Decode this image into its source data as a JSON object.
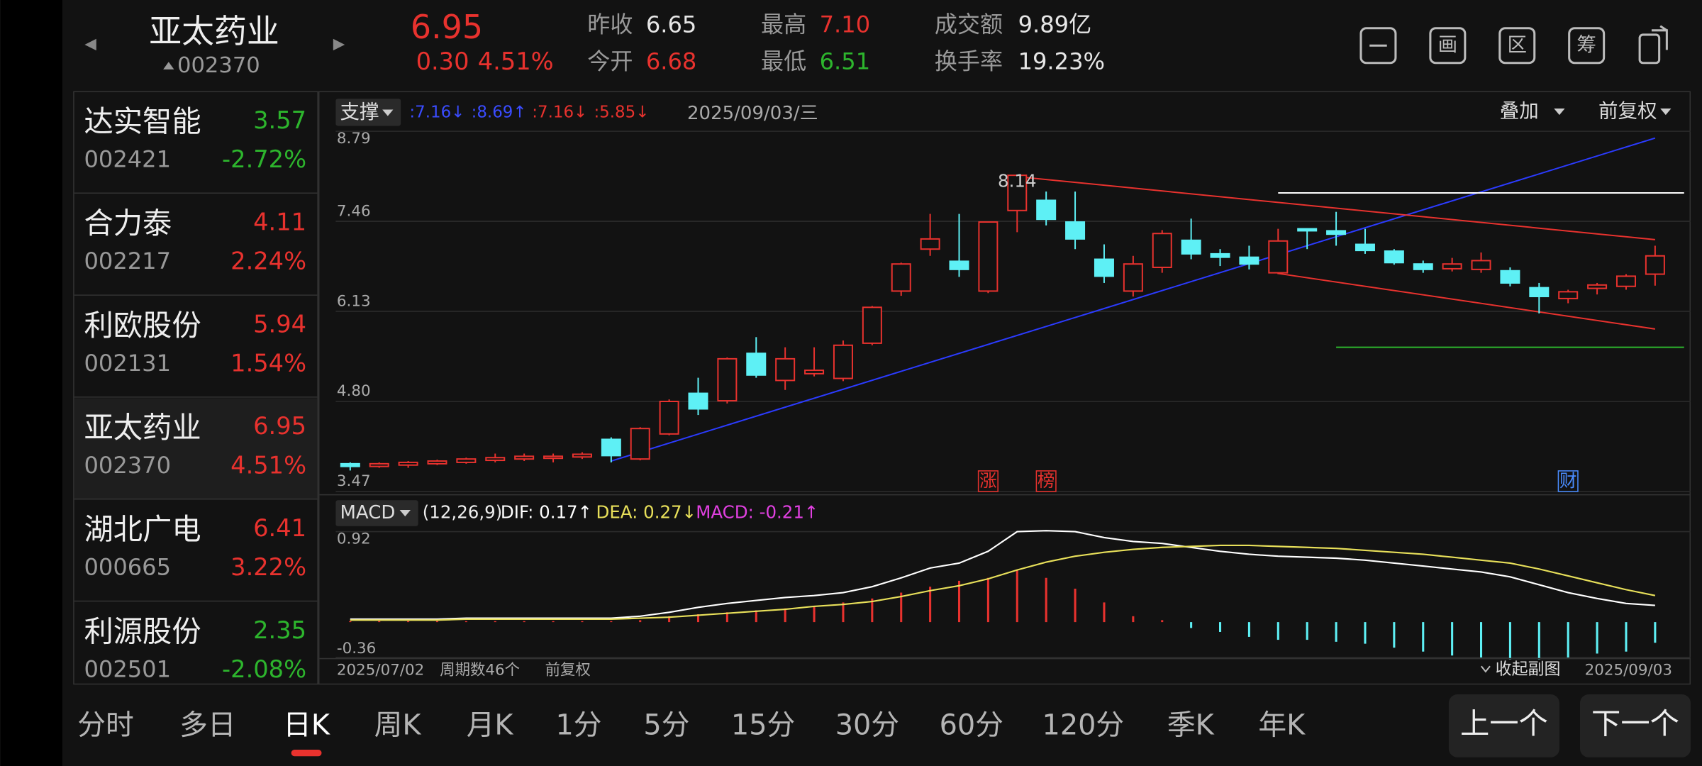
{
  "header": {
    "name": "亚太药业",
    "code": "002370",
    "price": "6.95",
    "change": "0.30",
    "change_pct": "4.51%",
    "color": "#e8322e",
    "stats": [
      {
        "label": "昨收",
        "value": "6.65",
        "color": "#e6e6e6"
      },
      {
        "label": "今开",
        "value": "6.68",
        "color": "#e8322e"
      },
      {
        "label": "最高",
        "value": "7.10",
        "color": "#e8322e"
      },
      {
        "label": "最低",
        "value": "6.51",
        "color": "#2db52d"
      },
      {
        "label": "成交额",
        "value": "9.89亿",
        "color": "#e6e6e6"
      },
      {
        "label": "换手率",
        "value": "19.23%",
        "color": "#e6e6e6"
      }
    ],
    "icons": [
      "画",
      "区",
      "筹"
    ]
  },
  "watchlist": {
    "selected": 3,
    "rows": [
      {
        "name": "达实智能",
        "code": "002421",
        "price": "3.57",
        "change": "-2.72%",
        "color": "#2db52d"
      },
      {
        "name": "合力泰",
        "code": "002217",
        "price": "4.11",
        "change": "2.24%",
        "color": "#e8322e"
      },
      {
        "name": "利欧股份",
        "code": "002131",
        "price": "5.94",
        "change": "1.54%",
        "color": "#e8322e"
      },
      {
        "name": "亚太药业",
        "code": "002370",
        "price": "6.95",
        "change": "4.51%",
        "color": "#e8322e"
      },
      {
        "name": "湖北广电",
        "code": "000665",
        "price": "6.41",
        "change": "3.22%",
        "color": "#e8322e"
      },
      {
        "name": "利源股份",
        "code": "002501",
        "price": "2.35",
        "change": "-2.08%",
        "color": "#2db52d"
      }
    ]
  },
  "chart_data": [
    {
      "type": "candlestick",
      "up_color": "#e8322e",
      "down_color": "#5ef0f5",
      "support_button": "支撑",
      "support_levels": [
        {
          "text": ":7.16↓",
          "color": "#3a4cff"
        },
        {
          "text": ":8.69↑",
          "color": "#3a4cff"
        },
        {
          "text": ":7.16↓",
          "color": "#e8322e"
        },
        {
          "text": ":5.85↓",
          "color": "#e8322e"
        }
      ],
      "date": "2025/09/03/三",
      "overlay": "叠加",
      "adjust": "前复权",
      "categories": [
        "2025/07/02",
        null,
        null,
        null,
        null,
        null,
        null,
        null,
        null,
        null,
        null,
        null,
        null,
        null,
        null,
        null,
        null,
        null,
        null,
        null,
        null,
        null,
        null,
        null,
        null,
        null,
        null,
        null,
        null,
        null,
        null,
        null,
        null,
        null,
        null,
        null,
        null,
        null,
        null,
        null,
        null,
        null,
        null,
        null,
        null,
        "2025/09/03"
      ],
      "open": [
        3.88,
        3.84,
        3.86,
        3.88,
        3.9,
        3.93,
        3.95,
        3.96,
        3.98,
        4.24,
        3.95,
        4.32,
        4.92,
        4.81,
        5.51,
        5.11,
        5.21,
        5.14,
        5.66,
        6.43,
        7.05,
        6.87,
        6.43,
        7.62,
        7.77,
        7.45,
        6.9,
        6.43,
        6.78,
        7.18,
        6.98,
        6.93,
        6.7,
        7.35,
        7.32,
        7.12,
        7.02,
        6.83,
        6.76,
        6.75,
        6.73,
        6.48,
        6.32,
        6.47,
        6.5,
        6.68
      ],
      "high": [
        3.9,
        3.9,
        3.92,
        3.94,
        3.97,
        4.03,
        4.03,
        4.03,
        4.05,
        4.27,
        4.42,
        4.83,
        5.15,
        5.45,
        5.75,
        5.6,
        5.6,
        5.7,
        6.21,
        6.85,
        7.57,
        7.57,
        7.45,
        8.14,
        7.9,
        7.9,
        7.12,
        6.95,
        7.33,
        7.5,
        7.05,
        7.1,
        7.35,
        7.35,
        7.6,
        7.35,
        7.05,
        6.88,
        6.92,
        7.0,
        6.78,
        6.55,
        6.45,
        6.55,
        6.68,
        7.1
      ],
      "low": [
        3.78,
        3.82,
        3.82,
        3.86,
        3.88,
        3.9,
        3.92,
        3.9,
        3.95,
        3.9,
        3.93,
        4.3,
        4.6,
        4.77,
        5.15,
        4.97,
        5.17,
        5.1,
        5.63,
        6.36,
        6.95,
        6.64,
        6.4,
        7.3,
        7.4,
        7.05,
        6.55,
        6.35,
        6.7,
        6.9,
        6.8,
        6.75,
        6.68,
        7.05,
        7.1,
        6.98,
        6.82,
        6.7,
        6.72,
        6.7,
        6.5,
        6.1,
        6.25,
        6.38,
        6.45,
        6.51
      ],
      "close": [
        3.84,
        3.88,
        3.9,
        3.92,
        3.95,
        3.97,
        3.99,
        3.99,
        4.02,
        4.0,
        4.4,
        4.8,
        4.69,
        5.43,
        5.19,
        5.43,
        5.26,
        5.63,
        6.19,
        6.83,
        7.2,
        6.75,
        7.45,
        8.14,
        7.49,
        7.2,
        6.65,
        6.83,
        7.28,
        6.98,
        6.93,
        6.83,
        7.17,
        7.32,
        7.27,
        7.03,
        6.85,
        6.75,
        6.83,
        6.88,
        6.55,
        6.35,
        6.42,
        6.52,
        6.65,
        6.95
      ],
      "ylim": [
        3.47,
        8.79
      ],
      "yticks": [
        8.79,
        7.46,
        6.13,
        {
          "value": 4.8,
          "label": "4.80"
        },
        3.47
      ],
      "drawings": [
        {
          "from": [
            9,
            3.92
          ],
          "to": [
            45,
            8.69
          ],
          "color": "#2b3bff"
        },
        {
          "from": [
            23,
            8.12
          ],
          "to": [
            45,
            7.19
          ],
          "color": "#e8322e"
        },
        {
          "from": [
            32,
            6.69
          ],
          "to": [
            45,
            5.87
          ],
          "color": "#e8322e"
        },
        {
          "from": [
            32,
            7.88
          ],
          "to": [
            46,
            7.88
          ],
          "color": "#ffffff"
        },
        {
          "from": [
            34,
            5.6
          ],
          "to": [
            46,
            5.6
          ],
          "color": "#2db52d"
        }
      ],
      "markers": [
        {
          "text": "涨",
          "index": 22,
          "color": "#e8322e"
        },
        {
          "text": "榜",
          "index": 24,
          "color": "#e8322e"
        },
        {
          "text": "财",
          "index": 42,
          "color": "#4a8cff"
        }
      ],
      "footer": {
        "start": "2025/07/02",
        "periods": "周期数46个",
        "adjust": "前复权",
        "collapse": "收起副图",
        "end": "2025/09/03"
      }
    },
    {
      "type": "macd",
      "title": "MACD",
      "params": "(12,26,9)",
      "legend": [
        {
          "text": "DIF: 0.17↑",
          "color": "#ffffff"
        },
        {
          "text": "DEA: 0.27↓",
          "color": "#e8e05a"
        },
        {
          "text": "MACD: -0.21↑",
          "color": "#e040e0"
        }
      ],
      "ylim": [
        -0.36,
        0.92
      ],
      "yticks": [
        0.92,
        -0.36
      ],
      "series": [
        {
          "name": "DIF",
          "color": "#ffffff",
          "values": [
            0.03,
            0.03,
            0.03,
            0.03,
            0.04,
            0.04,
            0.04,
            0.04,
            0.04,
            0.04,
            0.06,
            0.1,
            0.15,
            0.19,
            0.22,
            0.25,
            0.27,
            0.3,
            0.36,
            0.45,
            0.55,
            0.6,
            0.72,
            0.92,
            0.93,
            0.92,
            0.86,
            0.82,
            0.8,
            0.76,
            0.72,
            0.69,
            0.67,
            0.66,
            0.65,
            0.63,
            0.6,
            0.57,
            0.54,
            0.51,
            0.46,
            0.38,
            0.3,
            0.24,
            0.19,
            0.17
          ]
        },
        {
          "name": "DEA",
          "color": "#e8e05a",
          "values": [
            0.02,
            0.02,
            0.02,
            0.02,
            0.03,
            0.03,
            0.03,
            0.03,
            0.03,
            0.03,
            0.04,
            0.05,
            0.07,
            0.09,
            0.11,
            0.13,
            0.16,
            0.18,
            0.21,
            0.26,
            0.32,
            0.37,
            0.44,
            0.53,
            0.61,
            0.67,
            0.71,
            0.74,
            0.76,
            0.77,
            0.78,
            0.78,
            0.77,
            0.76,
            0.75,
            0.73,
            0.71,
            0.69,
            0.66,
            0.63,
            0.6,
            0.54,
            0.47,
            0.4,
            0.33,
            0.27
          ]
        },
        {
          "name": "MACD",
          "up_color": "#e8322e",
          "down_color": "#5ef0f5",
          "values": [
            0.01,
            0.01,
            0.01,
            0.01,
            0.01,
            0.01,
            0.01,
            0.01,
            0.01,
            0.01,
            0.02,
            0.06,
            0.08,
            0.1,
            0.12,
            0.14,
            0.16,
            0.2,
            0.24,
            0.3,
            0.36,
            0.42,
            0.45,
            0.53,
            0.45,
            0.34,
            0.2,
            0.06,
            0.02,
            -0.06,
            -0.1,
            -0.15,
            -0.18,
            -0.18,
            -0.2,
            -0.22,
            -0.26,
            -0.3,
            -0.34,
            -0.36,
            -0.38,
            -0.38,
            -0.36,
            -0.32,
            -0.3,
            -0.21
          ]
        }
      ]
    }
  ],
  "tabs": {
    "active": 2,
    "items": [
      "分时",
      "多日",
      "日K",
      "周K",
      "月K",
      "1分",
      "5分",
      "15分",
      "30分",
      "60分",
      "120分",
      "季K",
      "年K"
    ]
  },
  "buttons": [
    "上一个",
    "下一个"
  ]
}
